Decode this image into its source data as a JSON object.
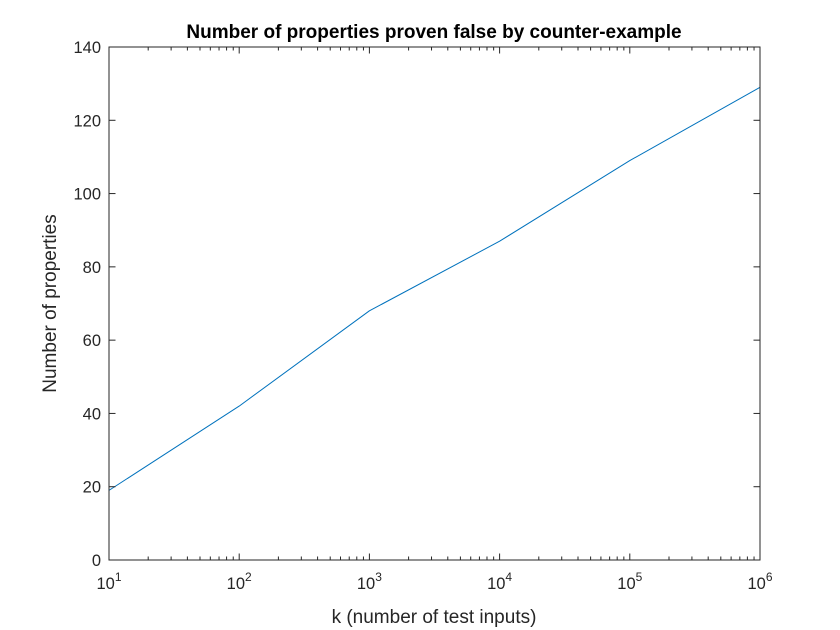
{
  "chart_data": {
    "type": "line",
    "title": "Number of properties proven false by counter-example",
    "xlabel": "k (number of test inputs)",
    "ylabel": "Number of properties",
    "x_scale": "log",
    "xlim": [
      10,
      1000000
    ],
    "ylim": [
      0,
      140
    ],
    "x_ticks": [
      {
        "value": 10,
        "base": "10",
        "exp": "1"
      },
      {
        "value": 100,
        "base": "10",
        "exp": "2"
      },
      {
        "value": 1000,
        "base": "10",
        "exp": "3"
      },
      {
        "value": 10000,
        "base": "10",
        "exp": "4"
      },
      {
        "value": 100000,
        "base": "10",
        "exp": "5"
      },
      {
        "value": 1000000,
        "base": "10",
        "exp": "6"
      }
    ],
    "y_ticks": [
      "0",
      "20",
      "40",
      "60",
      "80",
      "100",
      "120",
      "140"
    ],
    "grid": false,
    "series": [
      {
        "color": "#0072BD",
        "x": [
          10,
          100,
          1000,
          10000,
          100000,
          1000000
        ],
        "y": [
          19,
          42,
          68,
          87,
          109,
          129
        ]
      }
    ]
  }
}
